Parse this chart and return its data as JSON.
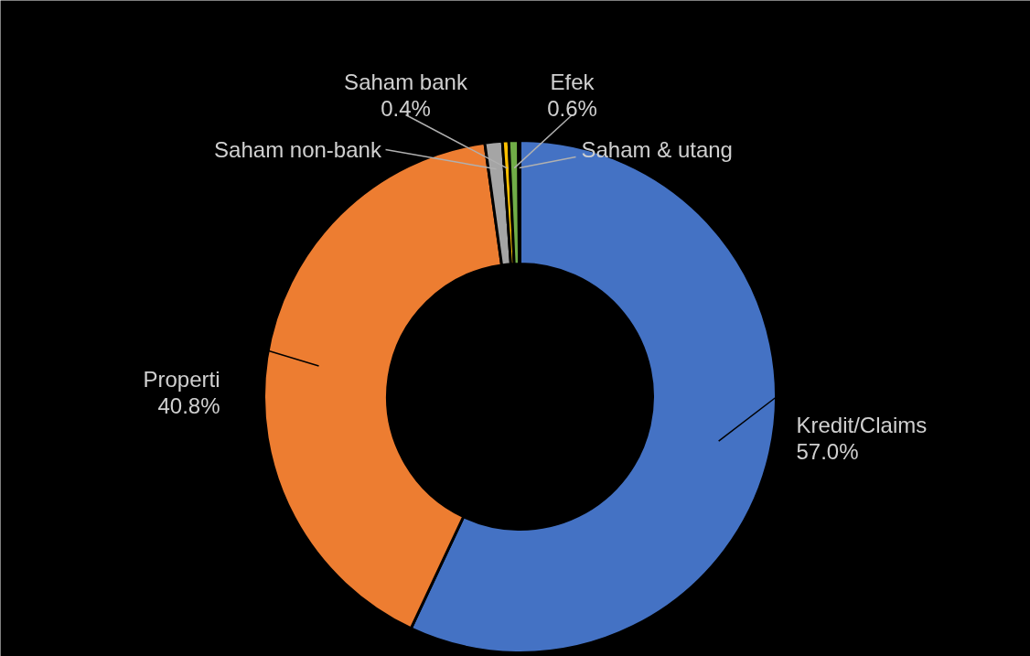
{
  "chart_data": {
    "type": "donut",
    "categories": [
      "Kredit/Claims",
      "Properti",
      "Saham non-bank",
      "Saham bank",
      "Efek",
      "Saham & utang"
    ],
    "values": [
      57.0,
      40.8,
      1.1,
      0.4,
      0.6,
      0.1
    ],
    "colors": [
      "#4472c4",
      "#ed7d31",
      "#a5a5a5",
      "#ffc000",
      "#70ad47",
      "#5b9bd5"
    ],
    "value_labels": [
      "57.0%",
      "40.8%",
      null,
      "0.4%",
      "0.6%",
      null
    ]
  }
}
